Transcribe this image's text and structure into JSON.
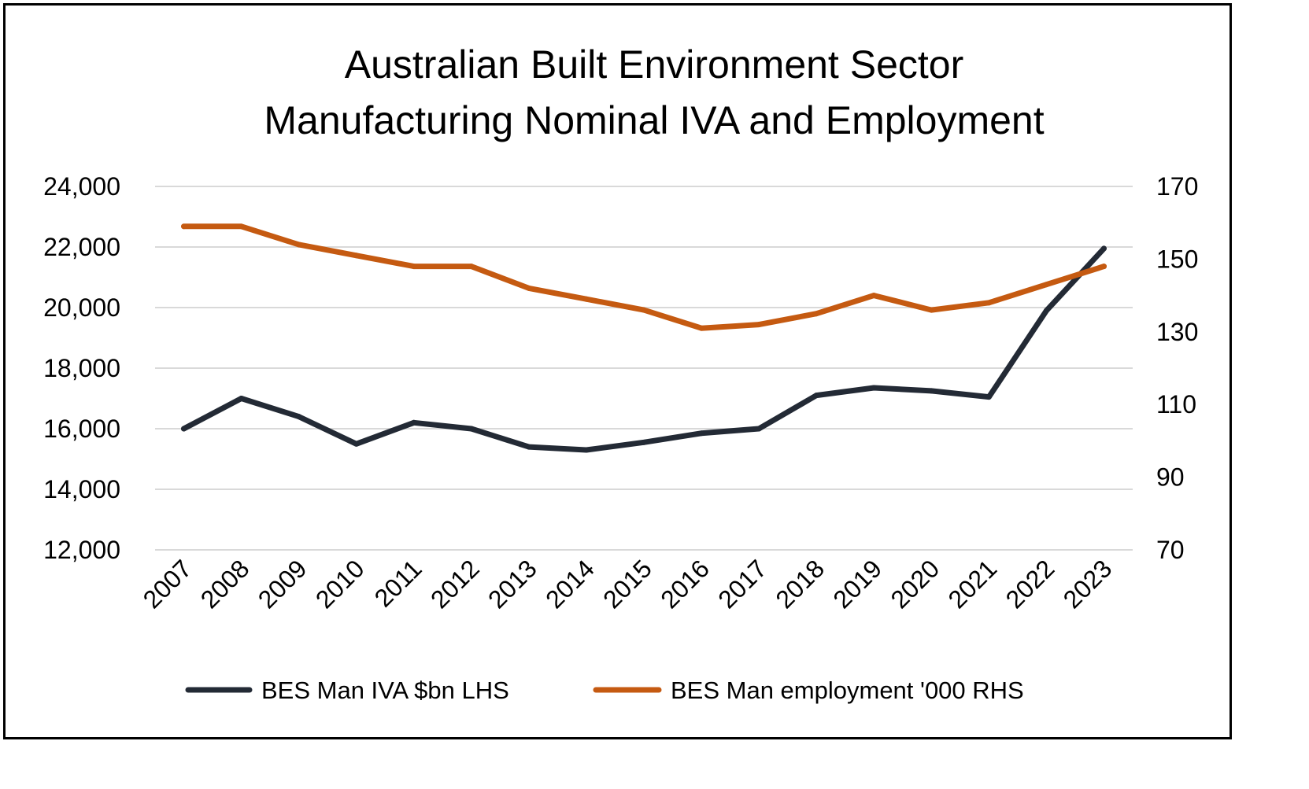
{
  "chart_data": {
    "type": "line",
    "title_lines": [
      "Australian Built Environment Sector",
      "Manufacturing Nominal IVA and Employment"
    ],
    "x": [
      "2007",
      "2008",
      "2009",
      "2010",
      "2011",
      "2012",
      "2013",
      "2014",
      "2015",
      "2016",
      "2017",
      "2018",
      "2019",
      "2020",
      "2021",
      "2022",
      "2023"
    ],
    "y_left": {
      "lim": [
        12000,
        24000
      ],
      "ticks": [
        12000,
        14000,
        16000,
        18000,
        20000,
        22000,
        24000
      ],
      "tick_labels": [
        "12,000",
        "14,000",
        "16,000",
        "18,000",
        "20,000",
        "22,000",
        "24,000"
      ]
    },
    "y_right": {
      "lim": [
        70,
        170
      ],
      "ticks": [
        70,
        90,
        110,
        130,
        150,
        170
      ],
      "tick_labels": [
        "70",
        "90",
        "110",
        "130",
        "150",
        "170"
      ]
    },
    "series": [
      {
        "name": "BES Man IVA $bn LHS",
        "axis": "left",
        "color": "#232a35",
        "values": [
          16000,
          17000,
          16400,
          15500,
          16200,
          16000,
          15400,
          15300,
          15550,
          15850,
          16000,
          17100,
          17350,
          17250,
          17050,
          19900,
          21950
        ]
      },
      {
        "name": "BES Man employment '000 RHS",
        "axis": "right",
        "color": "#c55a11",
        "values": [
          159,
          159,
          154,
          151,
          148,
          148,
          142,
          139,
          136,
          131,
          132,
          135,
          140,
          136,
          138,
          143,
          148
        ]
      }
    ],
    "grid": true,
    "legend_position": "bottom"
  }
}
